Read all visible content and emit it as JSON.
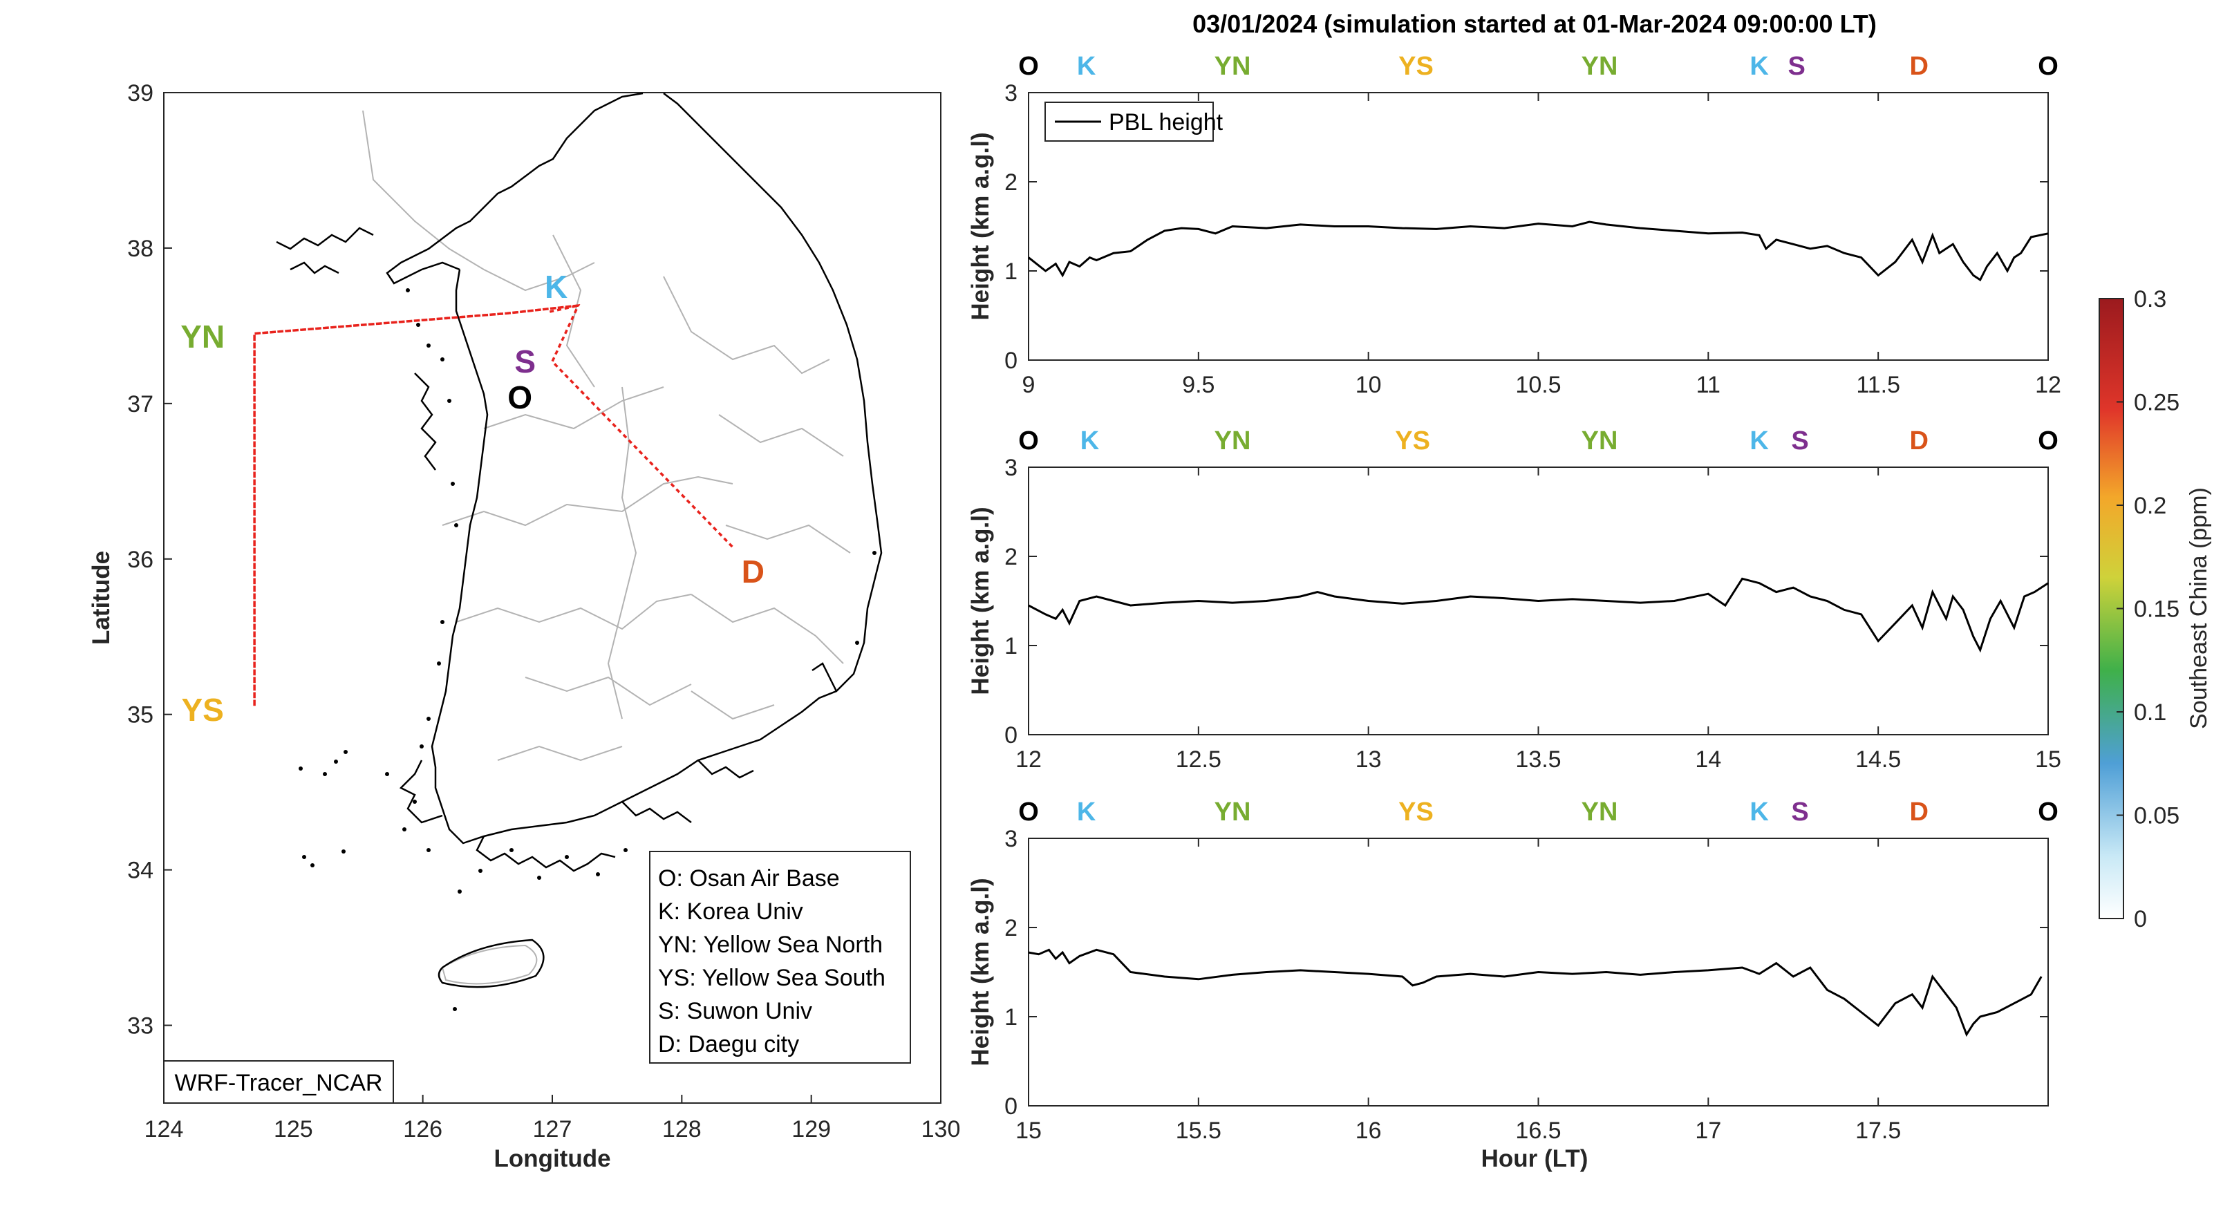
{
  "figure_title": "03/01/2024 (simulation started at 01-Mar-2024 09:00:00 LT)",
  "station_colors": {
    "O": "#000000",
    "K": "#4db6e8",
    "YN": "#77ac30",
    "YS": "#edb120",
    "S": "#7e2f8e",
    "D": "#d95319"
  },
  "map": {
    "xlabel": "Longitude",
    "ylabel": "Latitude",
    "xticks": [
      "124",
      "125",
      "126",
      "127",
      "128",
      "129",
      "130"
    ],
    "yticks": [
      "33",
      "34",
      "35",
      "36",
      "37",
      "38",
      "39"
    ],
    "xlim": [
      124,
      130
    ],
    "ylim": [
      32.5,
      39
    ],
    "model_label": "WRF-Tracer_NCAR",
    "route_color": "#e8221c",
    "route": [
      {
        "lon": 126.98,
        "lat": 37.59
      },
      {
        "lon": 127.2,
        "lat": 37.63
      },
      {
        "lon": 126.65,
        "lat": 37.58
      },
      {
        "lon": 124.7,
        "lat": 37.45
      },
      {
        "lon": 124.7,
        "lat": 35.05
      },
      {
        "lon": 124.7,
        "lat": 37.45
      },
      {
        "lon": 126.65,
        "lat": 37.58
      },
      {
        "lon": 127.2,
        "lat": 37.63
      },
      {
        "lon": 127.0,
        "lat": 37.27
      },
      {
        "lon": 128.4,
        "lat": 36.07
      }
    ],
    "stations": [
      {
        "code": "K",
        "lon": 127.03,
        "lat": 37.75,
        "color": "#4db6e8"
      },
      {
        "code": "S",
        "lon": 126.79,
        "lat": 37.27,
        "color": "#7e2f8e"
      },
      {
        "code": "O",
        "lon": 126.75,
        "lat": 37.04,
        "color": "#000000"
      },
      {
        "code": "D",
        "lon": 128.55,
        "lat": 35.92,
        "color": "#d95319"
      },
      {
        "code": "YN",
        "lon": 124.3,
        "lat": 37.43,
        "color": "#77ac30"
      },
      {
        "code": "YS",
        "lon": 124.3,
        "lat": 35.03,
        "color": "#edb120"
      }
    ],
    "legend": [
      "O: Osan Air Base",
      "K: Korea Univ",
      "YN: Yellow Sea North",
      "YS: Yellow Sea South",
      "S: Suwon Univ",
      "D: Daegu city"
    ]
  },
  "colorbar": {
    "label": "Southeast China (ppm)",
    "ticks": [
      "0",
      "0.05",
      "0.1",
      "0.15",
      "0.2",
      "0.25",
      "0.3"
    ],
    "range": [
      0,
      0.3
    ]
  },
  "chart_data": {
    "type": "line",
    "title": "03/01/2024 (simulation started at 01-Mar-2024 09:00:00 LT)",
    "xlabel": "Hour (LT)",
    "ylabel": "Height (km a.g.l)",
    "series_name": "PBL height",
    "panels": [
      {
        "xlim": [
          9,
          12
        ],
        "ylim": [
          0,
          3
        ],
        "xticks": [
          "9",
          "9.5",
          "10",
          "10.5",
          "11",
          "11.5",
          "12"
        ],
        "yticks": [
          "0",
          "1",
          "2",
          "3"
        ],
        "stations": [
          {
            "code": "O",
            "hour": 9.0
          },
          {
            "code": "K",
            "hour": 9.17
          },
          {
            "code": "YN",
            "hour": 9.6
          },
          {
            "code": "YS",
            "hour": 10.14
          },
          {
            "code": "YN",
            "hour": 10.68
          },
          {
            "code": "K",
            "hour": 11.15
          },
          {
            "code": "S",
            "hour": 11.26
          },
          {
            "code": "D",
            "hour": 11.62
          },
          {
            "code": "O",
            "hour": 12.0
          }
        ],
        "x": [
          9.0,
          9.05,
          9.08,
          9.1,
          9.12,
          9.15,
          9.18,
          9.2,
          9.25,
          9.3,
          9.35,
          9.4,
          9.45,
          9.5,
          9.55,
          9.6,
          9.7,
          9.8,
          9.9,
          10.0,
          10.1,
          10.2,
          10.3,
          10.4,
          10.5,
          10.6,
          10.65,
          10.7,
          10.8,
          10.9,
          11.0,
          11.1,
          11.15,
          11.17,
          11.2,
          11.25,
          11.3,
          11.35,
          11.4,
          11.45,
          11.5,
          11.55,
          11.6,
          11.63,
          11.66,
          11.68,
          11.72,
          11.75,
          11.78,
          11.8,
          11.82,
          11.85,
          11.88,
          11.9,
          11.92,
          11.95,
          12.0
        ],
        "y": [
          1.15,
          1.0,
          1.08,
          0.95,
          1.1,
          1.05,
          1.15,
          1.12,
          1.2,
          1.22,
          1.35,
          1.45,
          1.48,
          1.47,
          1.42,
          1.5,
          1.48,
          1.52,
          1.5,
          1.5,
          1.48,
          1.47,
          1.5,
          1.48,
          1.53,
          1.5,
          1.55,
          1.52,
          1.48,
          1.45,
          1.42,
          1.43,
          1.4,
          1.25,
          1.35,
          1.3,
          1.25,
          1.28,
          1.2,
          1.15,
          0.95,
          1.1,
          1.35,
          1.1,
          1.4,
          1.2,
          1.3,
          1.1,
          0.95,
          0.9,
          1.05,
          1.2,
          1.0,
          1.15,
          1.2,
          1.38,
          1.42
        ]
      },
      {
        "xlim": [
          12,
          15
        ],
        "ylim": [
          0,
          3
        ],
        "xticks": [
          "12",
          "12.5",
          "13",
          "13.5",
          "14",
          "14.5",
          "15"
        ],
        "yticks": [
          "0",
          "1",
          "2",
          "3"
        ],
        "stations": [
          {
            "code": "O",
            "hour": 12.0
          },
          {
            "code": "K",
            "hour": 12.18
          },
          {
            "code": "YN",
            "hour": 12.6
          },
          {
            "code": "YS",
            "hour": 13.13
          },
          {
            "code": "YN",
            "hour": 13.68
          },
          {
            "code": "K",
            "hour": 14.15
          },
          {
            "code": "S",
            "hour": 14.27
          },
          {
            "code": "D",
            "hour": 14.62
          },
          {
            "code": "O",
            "hour": 15.0
          }
        ],
        "x": [
          12.0,
          12.05,
          12.08,
          12.1,
          12.12,
          12.15,
          12.2,
          12.25,
          12.3,
          12.4,
          12.5,
          12.6,
          12.7,
          12.8,
          12.85,
          12.9,
          13.0,
          13.1,
          13.2,
          13.3,
          13.4,
          13.5,
          13.6,
          13.7,
          13.8,
          13.9,
          14.0,
          14.05,
          14.1,
          14.15,
          14.2,
          14.25,
          14.3,
          14.35,
          14.4,
          14.45,
          14.5,
          14.55,
          14.6,
          14.63,
          14.66,
          14.7,
          14.72,
          14.75,
          14.78,
          14.8,
          14.83,
          14.86,
          14.9,
          14.93,
          14.96,
          15.0
        ],
        "y": [
          1.45,
          1.35,
          1.3,
          1.4,
          1.25,
          1.5,
          1.55,
          1.5,
          1.45,
          1.48,
          1.5,
          1.48,
          1.5,
          1.55,
          1.6,
          1.55,
          1.5,
          1.47,
          1.5,
          1.55,
          1.53,
          1.5,
          1.52,
          1.5,
          1.48,
          1.5,
          1.58,
          1.45,
          1.75,
          1.7,
          1.6,
          1.65,
          1.55,
          1.5,
          1.4,
          1.35,
          1.05,
          1.25,
          1.45,
          1.2,
          1.6,
          1.3,
          1.55,
          1.4,
          1.1,
          0.95,
          1.3,
          1.5,
          1.2,
          1.55,
          1.6,
          1.7
        ]
      },
      {
        "xlim": [
          15,
          18
        ],
        "ylim": [
          0,
          3
        ],
        "xticks": [
          "15",
          "15.5",
          "16",
          "16.5",
          "17",
          "17.5"
        ],
        "yticks": [
          "0",
          "1",
          "2",
          "3"
        ],
        "stations": [
          {
            "code": "O",
            "hour": 15.0
          },
          {
            "code": "K",
            "hour": 15.17
          },
          {
            "code": "YN",
            "hour": 15.6
          },
          {
            "code": "YS",
            "hour": 16.14
          },
          {
            "code": "YN",
            "hour": 16.68
          },
          {
            "code": "K",
            "hour": 17.15
          },
          {
            "code": "S",
            "hour": 17.27
          },
          {
            "code": "D",
            "hour": 17.62
          },
          {
            "code": "O",
            "hour": 18.0
          }
        ],
        "x": [
          15.0,
          15.03,
          15.06,
          15.08,
          15.1,
          15.12,
          15.15,
          15.2,
          15.25,
          15.3,
          15.4,
          15.5,
          15.6,
          15.7,
          15.8,
          15.9,
          16.0,
          16.1,
          16.13,
          16.16,
          16.2,
          16.3,
          16.4,
          16.5,
          16.6,
          16.7,
          16.8,
          16.9,
          17.0,
          17.1,
          17.15,
          17.2,
          17.25,
          17.3,
          17.35,
          17.4,
          17.45,
          17.5,
          17.55,
          17.6,
          17.63,
          17.66,
          17.7,
          17.73,
          17.76,
          17.78,
          17.8,
          17.85,
          17.9,
          17.95,
          17.98
        ],
        "y": [
          1.72,
          1.7,
          1.75,
          1.65,
          1.72,
          1.6,
          1.68,
          1.75,
          1.7,
          1.5,
          1.45,
          1.42,
          1.47,
          1.5,
          1.52,
          1.5,
          1.48,
          1.45,
          1.35,
          1.38,
          1.45,
          1.48,
          1.45,
          1.5,
          1.48,
          1.5,
          1.47,
          1.5,
          1.52,
          1.55,
          1.48,
          1.6,
          1.45,
          1.55,
          1.3,
          1.2,
          1.05,
          0.9,
          1.15,
          1.25,
          1.1,
          1.45,
          1.25,
          1.1,
          0.8,
          0.92,
          1.0,
          1.05,
          1.15,
          1.25,
          1.45
        ]
      }
    ]
  }
}
